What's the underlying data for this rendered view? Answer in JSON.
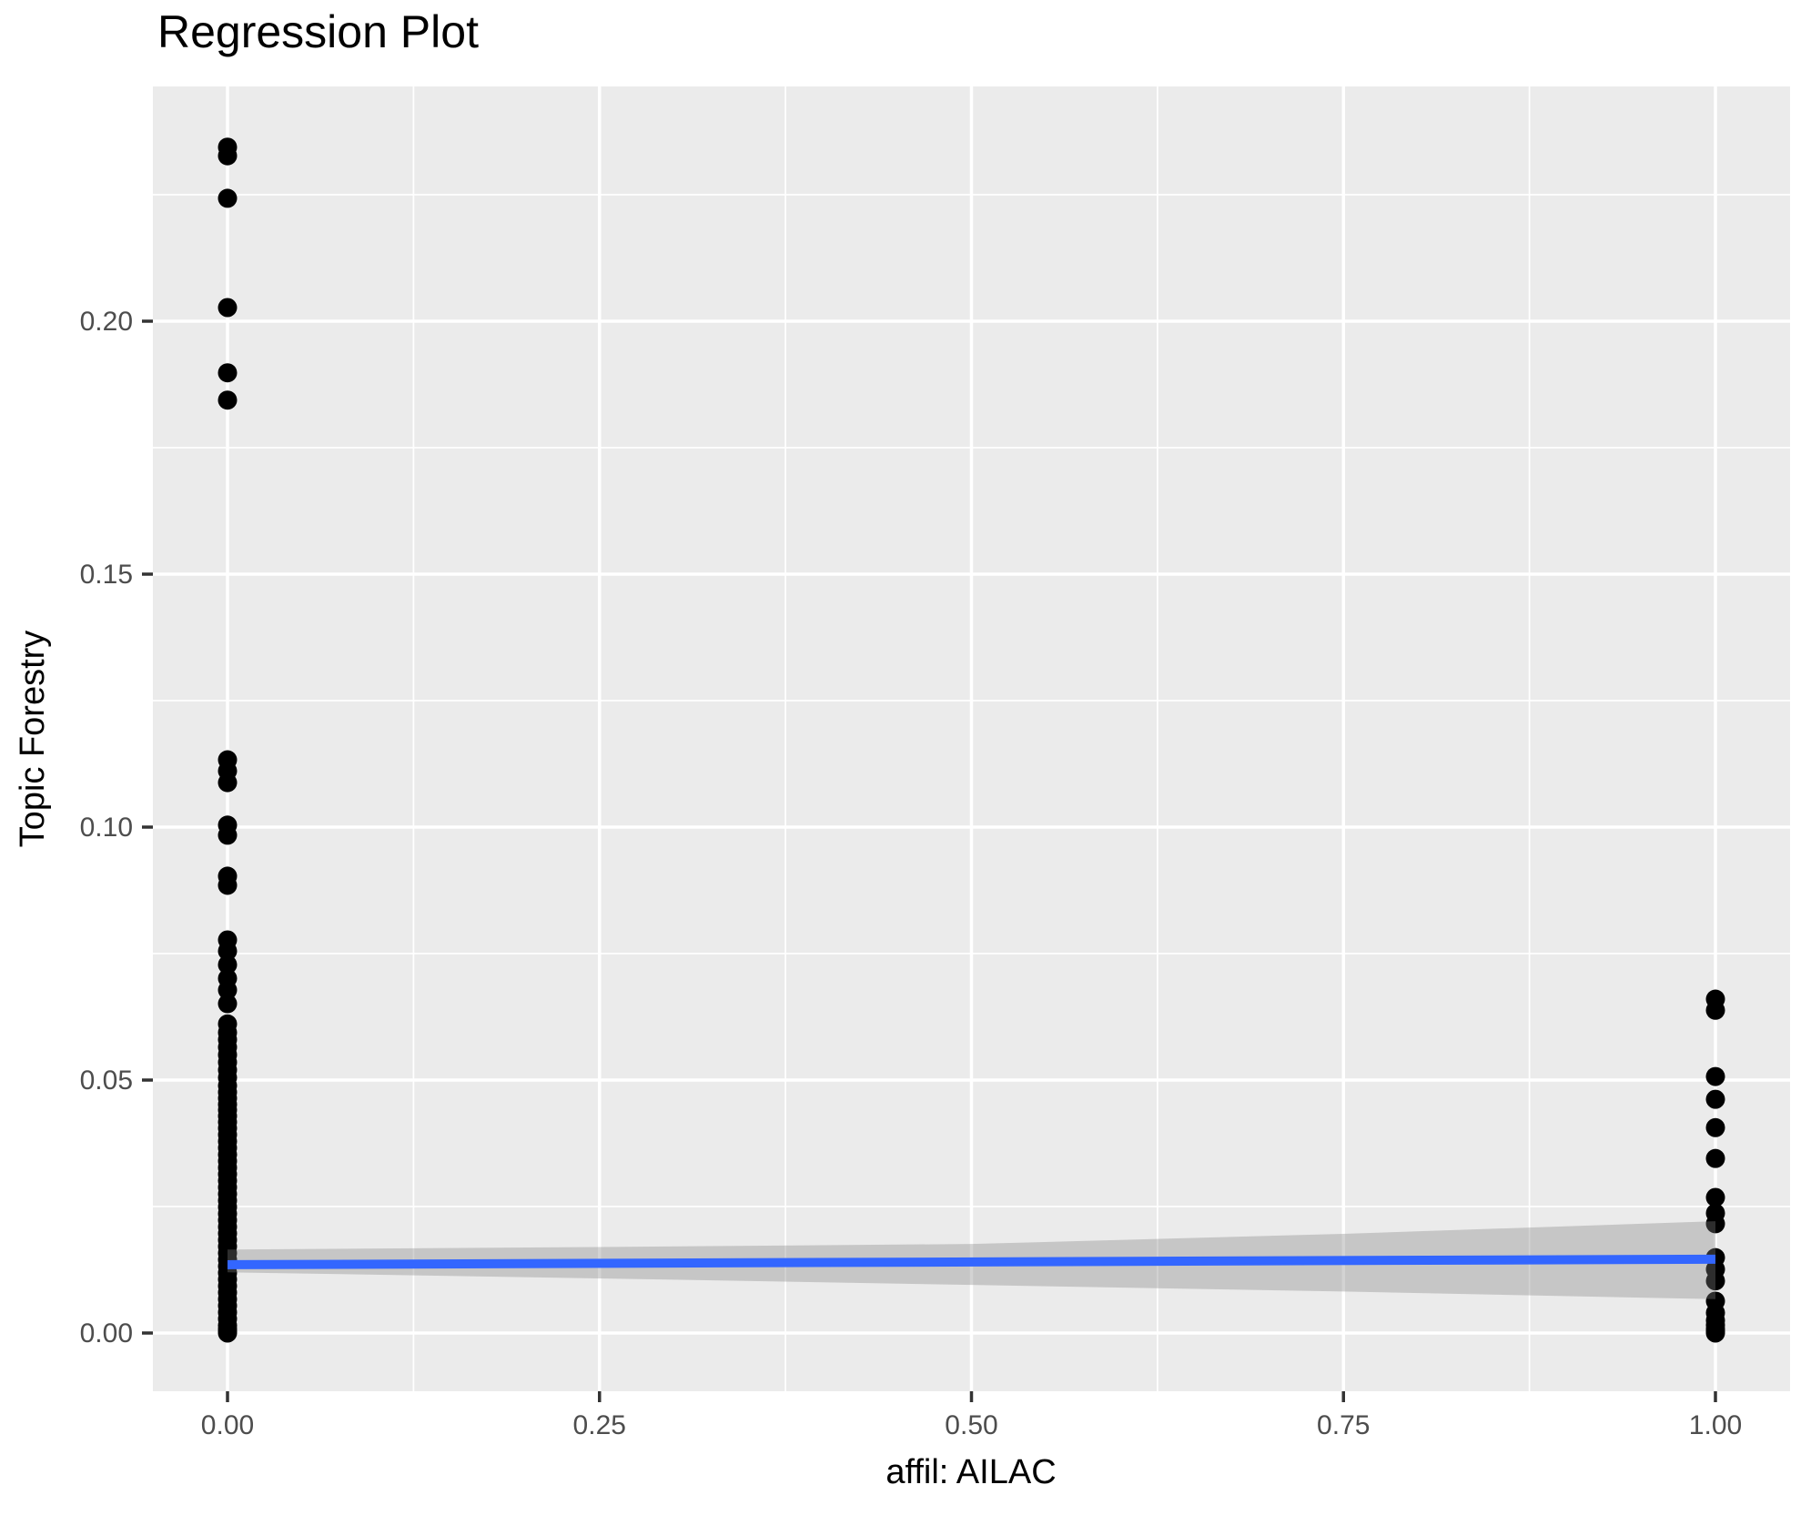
{
  "chart_data": {
    "type": "scatter",
    "title": "Regression Plot",
    "xlabel": "affil: AILAC",
    "ylabel": "Topic Forestry",
    "legend": "none",
    "grid": {
      "major": true,
      "minor": true,
      "color": "#FFFFFF"
    },
    "xlim": [
      -0.05,
      1.05
    ],
    "ylim": [
      -0.0115,
      0.2464
    ],
    "x_ticks": {
      "values": [
        0.0,
        0.25,
        0.5,
        0.75,
        1.0
      ],
      "labels": [
        "0.00",
        "0.25",
        "0.50",
        "0.75",
        "1.00"
      ]
    },
    "y_ticks": {
      "values": [
        0.0,
        0.05,
        0.1,
        0.15,
        0.2
      ],
      "labels": [
        "0.00",
        "0.05",
        "0.10",
        "0.15",
        "0.20"
      ]
    },
    "x_minor_ticks": [
      0.125,
      0.375,
      0.625,
      0.875
    ],
    "y_minor_ticks": [
      0.025,
      0.075,
      0.125,
      0.175,
      0.225
    ],
    "series": [
      {
        "name": "observations-at-x0",
        "type": "points",
        "x": 0.0,
        "y": [
          0.2344,
          0.2327,
          0.2243,
          0.2027,
          0.1898,
          0.1844,
          0.1133,
          0.1111,
          0.1088,
          0.1004,
          0.0984,
          0.0903,
          0.0885,
          0.0777,
          0.0755,
          0.0728,
          0.0701,
          0.0678,
          0.0651,
          0.0611,
          0.0594,
          0.058,
          0.0565,
          0.055,
          0.0535,
          0.052,
          0.0505,
          0.0489,
          0.0476,
          0.0464,
          0.0452,
          0.0441,
          0.0429,
          0.0417,
          0.0405,
          0.0392,
          0.0379,
          0.0366,
          0.0353,
          0.034,
          0.0327,
          0.0314,
          0.0301,
          0.0288,
          0.0275,
          0.0262,
          0.0249,
          0.0236,
          0.0223,
          0.021,
          0.0197,
          0.0184,
          0.0171,
          0.0158,
          0.0145,
          0.0132,
          0.0119,
          0.0106,
          0.0093,
          0.008,
          0.0067,
          0.0054,
          0.0041,
          0.0028,
          0.0015,
          0.0008,
          0.0003,
          0.0
        ]
      },
      {
        "name": "observations-at-x1",
        "type": "points",
        "x": 1.0,
        "y": [
          0.066,
          0.0638,
          0.0507,
          0.0462,
          0.0406,
          0.0345,
          0.0268,
          0.0237,
          0.0216,
          0.0149,
          0.0126,
          0.0103,
          0.0063,
          0.004,
          0.0025,
          0.0016,
          0.0008,
          0.0003,
          0.0
        ]
      },
      {
        "name": "lm-fit-line",
        "type": "line",
        "x": [
          0.0,
          1.0
        ],
        "y": [
          0.0135,
          0.0146
        ]
      },
      {
        "name": "confidence-band",
        "type": "band",
        "x": [
          0.0,
          0.25,
          0.5,
          0.75,
          1.0
        ],
        "upper": [
          0.0165,
          0.017,
          0.0176,
          0.0196,
          0.0221
        ],
        "lower": [
          0.012,
          0.0108,
          0.0095,
          0.0082,
          0.0067
        ]
      }
    ],
    "colors": {
      "point": "#000000",
      "line": "#3366FF",
      "band": "rgba(130,130,130,0.35)",
      "panel": "#EBEBEB",
      "gridline": "#FFFFFF",
      "tick_mark": "#333333",
      "tick_label": "#4D4D4D",
      "title": "#000000"
    },
    "point_radius_px": 10.5
  }
}
